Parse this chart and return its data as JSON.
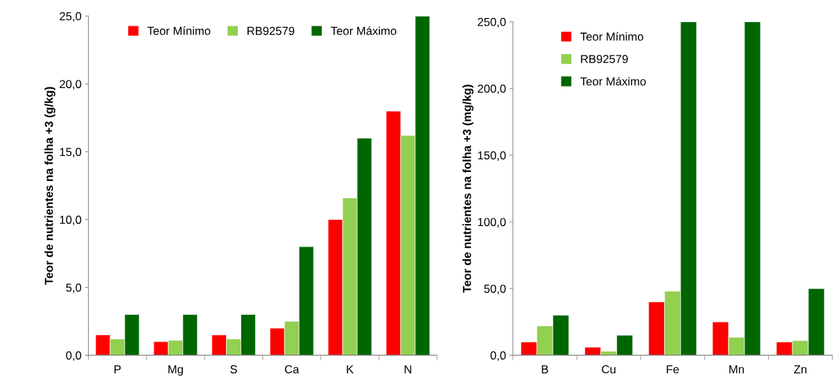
{
  "chart_data": [
    {
      "type": "bar",
      "ylabel": "Teor de nutrientes na folha +3 (g/kg)",
      "categories": [
        "P",
        "Mg",
        "S",
        "Ca",
        "K",
        "N"
      ],
      "series": [
        {
          "name": "Teor Mínimo",
          "color": "#ff0000",
          "values": [
            1.5,
            1.0,
            1.5,
            2.0,
            10.0,
            18.0
          ]
        },
        {
          "name": "RB92579",
          "color": "#92d050",
          "values": [
            1.2,
            1.1,
            1.2,
            2.5,
            11.6,
            16.2
          ]
        },
        {
          "name": "Teor Máximo",
          "color": "#006600",
          "values": [
            3.0,
            3.0,
            3.0,
            8.0,
            16.0,
            25.0
          ]
        }
      ],
      "ylim": [
        0,
        25
      ],
      "yticks": [
        {
          "value": 0,
          "label": "0,0"
        },
        {
          "value": 5,
          "label": "5,0"
        },
        {
          "value": 10,
          "label": "10,0"
        },
        {
          "value": 15,
          "label": "15,0"
        },
        {
          "value": 20,
          "label": "20,0"
        },
        {
          "value": 25,
          "label": "25,0"
        }
      ],
      "legend": "top",
      "grid": false
    },
    {
      "type": "bar",
      "ylabel": "Teor de nutrientes na folha +3 (mg/kg)",
      "categories": [
        "B",
        "Cu",
        "Fe",
        "Mn",
        "Zn"
      ],
      "series": [
        {
          "name": "Teor Mínimo",
          "color": "#ff0000",
          "values": [
            10,
            6,
            40,
            25,
            10
          ]
        },
        {
          "name": "RB92579",
          "color": "#92d050",
          "values": [
            22,
            3,
            48,
            13.5,
            11
          ]
        },
        {
          "name": "Teor Máximo",
          "color": "#006600",
          "values": [
            30,
            15,
            250,
            250,
            50
          ]
        }
      ],
      "ylim": [
        0,
        250
      ],
      "yticks": [
        {
          "value": 0,
          "label": "0,0"
        },
        {
          "value": 50,
          "label": "50,0"
        },
        {
          "value": 100,
          "label": "100,0"
        },
        {
          "value": 150,
          "label": "150,0"
        },
        {
          "value": 200,
          "label": "200,0"
        },
        {
          "value": 250,
          "label": "250,0"
        }
      ],
      "legend": "top left",
      "grid": false
    }
  ]
}
